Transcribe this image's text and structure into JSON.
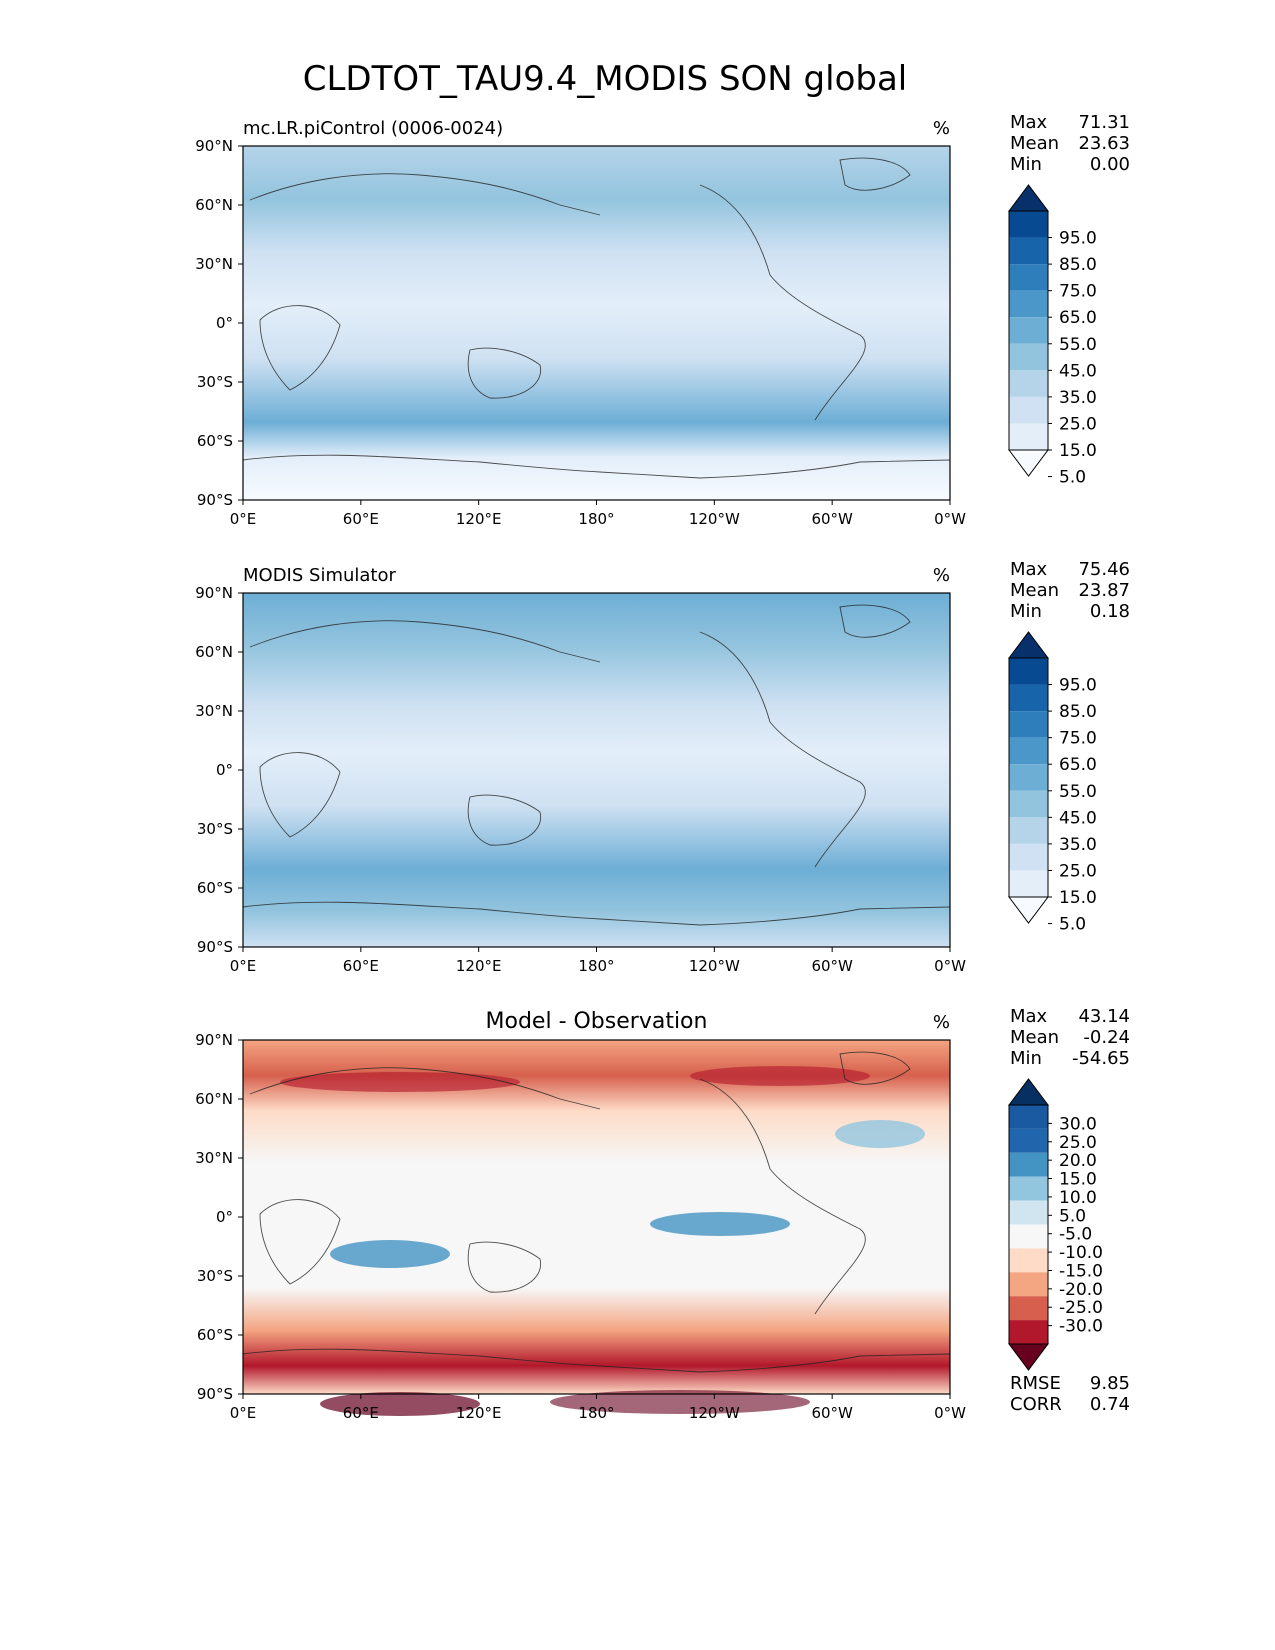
{
  "figure_title": "CLDTOT_TAU9.4_MODIS SON global",
  "chart_data": [
    {
      "type": "heatmap",
      "title": "mc.LR.piControl (0006-0024)",
      "units": "%",
      "x_ticks": [
        "0°E",
        "60°E",
        "120°E",
        "180°",
        "120°W",
        "60°W",
        "0°W"
      ],
      "y_ticks": [
        "90°N",
        "60°N",
        "30°N",
        "0°",
        "30°S",
        "60°S",
        "90°S"
      ],
      "xlim": [
        0,
        360
      ],
      "ylim": [
        -90,
        90
      ],
      "stats": [
        {
          "label": "Max",
          "value": "71.31"
        },
        {
          "label": "Mean",
          "value": "23.63"
        },
        {
          "label": "Min",
          "value": "0.00"
        }
      ],
      "colorbar": {
        "extend": "both",
        "tick_labels": [
          "95.0",
          "85.0",
          "75.0",
          "65.0",
          "55.0",
          "45.0",
          "35.0",
          "25.0",
          "15.0",
          "5.0"
        ],
        "colors": [
          "#f7fbff",
          "#e3eef9",
          "#cfe1f2",
          "#b5d4e9",
          "#93c4de",
          "#6daed5",
          "#4b97c9",
          "#2f7ebc",
          "#1764ab",
          "#084a91",
          "#08306b"
        ]
      }
    },
    {
      "type": "heatmap",
      "title": "MODIS Simulator",
      "units": "%",
      "x_ticks": [
        "0°E",
        "60°E",
        "120°E",
        "180°",
        "120°W",
        "60°W",
        "0°W"
      ],
      "y_ticks": [
        "90°N",
        "60°N",
        "30°N",
        "0°",
        "30°S",
        "60°S",
        "90°S"
      ],
      "xlim": [
        0,
        360
      ],
      "ylim": [
        -90,
        90
      ],
      "stats": [
        {
          "label": "Max",
          "value": "75.46"
        },
        {
          "label": "Mean",
          "value": "23.87"
        },
        {
          "label": "Min",
          "value": "0.18"
        }
      ],
      "colorbar": {
        "extend": "both",
        "tick_labels": [
          "95.0",
          "85.0",
          "75.0",
          "65.0",
          "55.0",
          "45.0",
          "35.0",
          "25.0",
          "15.0",
          "5.0"
        ],
        "colors": [
          "#f7fbff",
          "#e3eef9",
          "#cfe1f2",
          "#b5d4e9",
          "#93c4de",
          "#6daed5",
          "#4b97c9",
          "#2f7ebc",
          "#1764ab",
          "#084a91",
          "#08306b"
        ]
      }
    },
    {
      "type": "heatmap",
      "title": "Model - Observation",
      "units": "%",
      "x_ticks": [
        "0°E",
        "60°E",
        "120°E",
        "180°",
        "120°W",
        "60°W",
        "0°W"
      ],
      "y_ticks": [
        "90°N",
        "60°N",
        "30°N",
        "0°",
        "30°S",
        "60°S",
        "90°S"
      ],
      "xlim": [
        0,
        360
      ],
      "ylim": [
        -90,
        90
      ],
      "stats": [
        {
          "label": "Max",
          "value": "43.14"
        },
        {
          "label": "Mean",
          "value": "-0.24"
        },
        {
          "label": "Min",
          "value": "-54.65"
        }
      ],
      "metrics": [
        {
          "label": "RMSE",
          "value": "9.85"
        },
        {
          "label": "CORR",
          "value": "0.74"
        }
      ],
      "colorbar": {
        "extend": "both",
        "tick_labels": [
          "30.0",
          "25.0",
          "20.0",
          "15.0",
          "10.0",
          "5.0",
          "-5.0",
          "-10.0",
          "-15.0",
          "-20.0",
          "-25.0",
          "-30.0"
        ],
        "colors": [
          "#67001f",
          "#b2182b",
          "#d6604d",
          "#f4a582",
          "#fddbc7",
          "#f7f7f7",
          "#d1e5f0",
          "#92c5de",
          "#4393c3",
          "#2166ac",
          "#1a5aa0",
          "#053061"
        ]
      }
    }
  ]
}
